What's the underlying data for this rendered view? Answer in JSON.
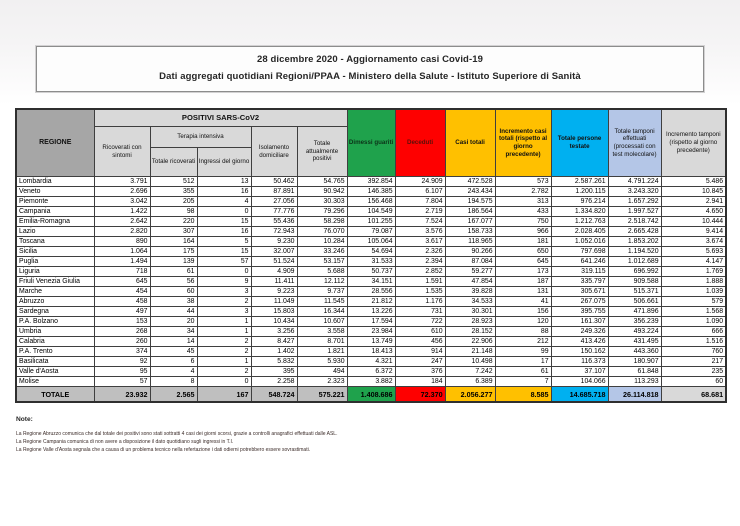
{
  "page": {
    "title_line1": "28 dicembre 2020 - Aggiornamento casi Covid-19",
    "title_line2": "Dati aggregati quotidiani Regioni/PPAA - Ministero della Salute - Istituto Superiore di Sanità"
  },
  "table": {
    "header": {
      "regione": "REGIONE",
      "positivi_group": "POSITIVI SARS-CoV2",
      "ricoverati": "Ricoverati con sintomi",
      "terapia_group": "Terapia intensiva",
      "ti_totale": "Totale ricoverati",
      "ti_ingressi": "Ingressi del giorno",
      "isolamento": "Isolamento domiciliare",
      "att_positivi": "Totale attualmente positivi",
      "dimessi": "Dimessi guariti",
      "deceduti": "Deceduti",
      "casi_totali": "Casi totali",
      "incr_casi": "Incremento casi totali (rispetto al giorno precedente)",
      "testate": "Totale persone testate",
      "tamponi": "Totale tamponi effettuati (processati con test molecolare)",
      "incr_tamponi": "Incremento tamponi (rispetto al giorno precedente)"
    },
    "rows": [
      {
        "regione": "Lombardia",
        "values": [
          "3.791",
          "512",
          "13",
          "50.462",
          "54.765",
          "392.854",
          "24.909",
          "472.528",
          "573",
          "2.587.261",
          "4.791.224",
          "5.486"
        ]
      },
      {
        "regione": "Veneto",
        "values": [
          "2.696",
          "355",
          "16",
          "87.891",
          "90.942",
          "146.385",
          "6.107",
          "243.434",
          "2.782",
          "1.200.115",
          "3.243.320",
          "10.845"
        ]
      },
      {
        "regione": "Piemonte",
        "values": [
          "3.042",
          "205",
          "4",
          "27.056",
          "30.303",
          "156.468",
          "7.804",
          "194.575",
          "313",
          "976.214",
          "1.657.292",
          "2.941"
        ]
      },
      {
        "regione": "Campania",
        "values": [
          "1.422",
          "98",
          "0",
          "77.776",
          "79.296",
          "104.549",
          "2.719",
          "186.564",
          "433",
          "1.334.820",
          "1.997.527",
          "4.650"
        ]
      },
      {
        "regione": "Emilia-Romagna",
        "values": [
          "2.642",
          "220",
          "15",
          "55.436",
          "58.298",
          "101.255",
          "7.524",
          "167.077",
          "750",
          "1.212.763",
          "2.518.742",
          "10.444"
        ]
      },
      {
        "regione": "Lazio",
        "values": [
          "2.820",
          "307",
          "16",
          "72.943",
          "76.070",
          "79.087",
          "3.576",
          "158.733",
          "966",
          "2.028.405",
          "2.665.428",
          "9.414"
        ]
      },
      {
        "regione": "Toscana",
        "values": [
          "890",
          "164",
          "5",
          "9.230",
          "10.284",
          "105.064",
          "3.617",
          "118.965",
          "181",
          "1.052.016",
          "1.853.202",
          "3.674"
        ]
      },
      {
        "regione": "Sicilia",
        "values": [
          "1.064",
          "175",
          "15",
          "32.007",
          "33.246",
          "54.694",
          "2.326",
          "90.266",
          "650",
          "797.698",
          "1.194.520",
          "5.693"
        ]
      },
      {
        "regione": "Puglia",
        "values": [
          "1.494",
          "139",
          "57",
          "51.524",
          "53.157",
          "31.533",
          "2.394",
          "87.084",
          "645",
          "641.246",
          "1.012.689",
          "4.147"
        ]
      },
      {
        "regione": "Liguria",
        "values": [
          "718",
          "61",
          "0",
          "4.909",
          "5.688",
          "50.737",
          "2.852",
          "59.277",
          "173",
          "319.115",
          "696.992",
          "1.769"
        ]
      },
      {
        "regione": "Friuli Venezia Giulia",
        "values": [
          "645",
          "56",
          "9",
          "11.411",
          "12.112",
          "34.151",
          "1.591",
          "47.854",
          "187",
          "335.797",
          "909.588",
          "1.888"
        ]
      },
      {
        "regione": "Marche",
        "values": [
          "454",
          "60",
          "3",
          "9.223",
          "9.737",
          "28.556",
          "1.535",
          "39.828",
          "131",
          "305.671",
          "515.371",
          "1.039"
        ]
      },
      {
        "regione": "Abruzzo",
        "values": [
          "458",
          "38",
          "2",
          "11.049",
          "11.545",
          "21.812",
          "1.176",
          "34.533",
          "41",
          "267.075",
          "506.661",
          "579"
        ]
      },
      {
        "regione": "Sardegna",
        "values": [
          "497",
          "44",
          "3",
          "15.803",
          "16.344",
          "13.226",
          "731",
          "30.301",
          "156",
          "395.755",
          "471.896",
          "1.568"
        ]
      },
      {
        "regione": "P.A. Bolzano",
        "values": [
          "153",
          "20",
          "1",
          "10.434",
          "10.607",
          "17.594",
          "722",
          "28.923",
          "120",
          "161.307",
          "356.239",
          "1.090"
        ]
      },
      {
        "regione": "Umbria",
        "values": [
          "268",
          "34",
          "1",
          "3.256",
          "3.558",
          "23.984",
          "610",
          "28.152",
          "88",
          "249.326",
          "493.224",
          "666"
        ]
      },
      {
        "regione": "Calabria",
        "values": [
          "260",
          "14",
          "2",
          "8.427",
          "8.701",
          "13.749",
          "456",
          "22.906",
          "212",
          "413.426",
          "431.495",
          "1.516"
        ]
      },
      {
        "regione": "P.A. Trento",
        "values": [
          "374",
          "45",
          "2",
          "1.402",
          "1.821",
          "18.413",
          "914",
          "21.148",
          "99",
          "150.162",
          "443.360",
          "760"
        ]
      },
      {
        "regione": "Basilicata",
        "values": [
          "92",
          "6",
          "1",
          "5.832",
          "5.930",
          "4.321",
          "247",
          "10.498",
          "17",
          "116.373",
          "180.907",
          "217"
        ]
      },
      {
        "regione": "Valle d'Aosta",
        "values": [
          "95",
          "4",
          "2",
          "395",
          "494",
          "6.372",
          "376",
          "7.242",
          "61",
          "37.107",
          "61.848",
          "235"
        ]
      },
      {
        "regione": "Molise",
        "values": [
          "57",
          "8",
          "0",
          "2.258",
          "2.323",
          "3.882",
          "184",
          "6.389",
          "7",
          "104.066",
          "113.293",
          "60"
        ]
      }
    ],
    "total": {
      "label": "TOTALE",
      "values": [
        "23.932",
        "2.565",
        "167",
        "548.724",
        "575.221",
        "1.408.686",
        "72.370",
        "2.056.277",
        "8.585",
        "14.685.718",
        "26.114.818",
        "68.681"
      ]
    }
  },
  "notes": {
    "label": "Note:",
    "lines": [
      "La Regione Abruzzo comunica che dal totale dei positivi sono stati sottratti 4 casi dei giorni scorsi, grazie a controlli anagrafici effettuati dalle ASL.",
      "La Regione Campania comunica di non avere a disposizione il dato quotidiano sugli ingressi in T.I.",
      "La Regione Valle d'Aosta segnala che a causa di un problema tecnico nella refertazione i dati odierni potrebbero essere sovrastimati."
    ]
  },
  "colors": {
    "green": "#1fa24c",
    "red": "#fe0000",
    "yellow": "#ffc000",
    "cyan": "#00b0f0",
    "lavender": "#b4c6e7",
    "light_gray": "#d9d9d9",
    "header_gray": "#a6a6a6",
    "total_gray": "#bfbfbf"
  }
}
